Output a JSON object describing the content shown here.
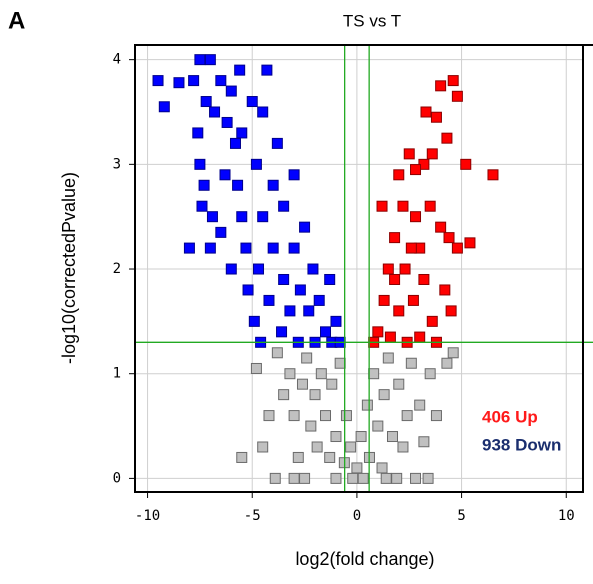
{
  "chart_data": {
    "type": "scatter",
    "panel_label": "A",
    "title": "TS vs T",
    "x_label": "log2(fold change)",
    "y_label": "-log10(correctedPvalue)",
    "xlim": [
      -10.6,
      10.8
    ],
    "ylim": [
      -0.13,
      4.14
    ],
    "xticks": [
      -10,
      -5,
      0,
      5,
      10
    ],
    "yticks": [
      0,
      1,
      2,
      3,
      4
    ],
    "grid": true,
    "vlines": [
      -0.585,
      0.585
    ],
    "hline": 1.3,
    "threshold_color": "#22aa22",
    "series": [
      {
        "color": "#c0c0c0",
        "x": [
          -4.8,
          -4.5,
          -3.8,
          -3.5,
          -3.2,
          -3.0,
          -2.8,
          -2.6,
          -2.4,
          -2.2,
          -2.0,
          -1.9,
          -1.7,
          -1.5,
          -1.3,
          -1.2,
          -1.0,
          -0.8,
          -0.6,
          -0.5,
          -0.3,
          -0.2,
          0,
          0.2,
          0.3,
          0.5,
          0.6,
          0.8,
          1.0,
          1.2,
          1.3,
          1.5,
          1.7,
          1.9,
          2.0,
          2.2,
          2.4,
          2.6,
          2.8,
          3.0,
          3.2,
          3.5,
          3.8,
          4.3,
          4.6,
          3.4,
          -3.0,
          -3.9,
          -2.5,
          -1.0,
          1.4,
          -5.5,
          -4.2
        ],
        "values": [
          1.05,
          0.3,
          1.2,
          0.8,
          1.0,
          0.6,
          0.2,
          0.9,
          1.15,
          0.5,
          0.8,
          0.3,
          1.0,
          0.6,
          0.2,
          0.9,
          0.4,
          1.1,
          0.15,
          0.6,
          0.3,
          0.0,
          0.1,
          0.4,
          0.0,
          0.7,
          0.2,
          1.0,
          0.5,
          0.1,
          0.8,
          1.15,
          0.4,
          0.0,
          0.9,
          0.3,
          0.6,
          1.1,
          0.0,
          0.7,
          0.35,
          1.0,
          0.6,
          1.1,
          1.2,
          0.0,
          0.0,
          0.0,
          0.0,
          0.0,
          0.0,
          0.2,
          0.6
        ]
      },
      {
        "color": "#0000ff",
        "x": [
          -9.5,
          -9.2,
          -8.5,
          -7.5,
          -7.0,
          -7.8,
          -7.2,
          -7.6,
          -6.8,
          -6.5,
          -6.2,
          -6.0,
          -5.8,
          -7.5,
          -7.3,
          -6.9,
          -7.0,
          -6.5,
          -6.0,
          -5.5,
          -5.7,
          -5.5,
          -5.0,
          -4.8,
          -4.5,
          -4.5,
          -4.7,
          -5.2,
          -4.9,
          -4.6,
          -4.2,
          -4.0,
          -4.0,
          -3.8,
          -3.5,
          -3.5,
          -3.6,
          -3.2,
          -3.0,
          -3.0,
          -2.8,
          -2.7,
          -2.5,
          -2.3,
          -2.1,
          -2.0,
          -1.8,
          -1.5,
          -1.3,
          -1.2,
          -1.0,
          -0.8,
          -5.3,
          -6.3,
          -8.0,
          -7.4,
          -4.3,
          -5.6
        ],
        "values": [
          3.8,
          3.55,
          3.78,
          4.0,
          4.0,
          3.8,
          3.6,
          3.3,
          3.5,
          3.8,
          3.4,
          3.7,
          3.2,
          3.0,
          2.8,
          2.5,
          2.2,
          2.35,
          2.0,
          2.5,
          2.8,
          3.3,
          3.6,
          3.0,
          3.5,
          2.5,
          2.0,
          1.8,
          1.5,
          1.3,
          1.7,
          2.2,
          2.8,
          3.2,
          2.6,
          1.9,
          1.4,
          1.6,
          2.2,
          2.9,
          1.3,
          1.8,
          2.4,
          1.6,
          2.0,
          1.3,
          1.7,
          1.4,
          1.9,
          1.3,
          1.5,
          1.3,
          2.2,
          2.9,
          2.2,
          2.6,
          3.9,
          3.9
        ]
      },
      {
        "color": "#ff0000",
        "x": [
          4.6,
          4.0,
          4.8,
          3.8,
          4.3,
          3.6,
          6.5,
          5.2,
          3.2,
          2.8,
          2.5,
          2.0,
          2.2,
          2.8,
          3.5,
          4.0,
          4.4,
          5.4,
          4.8,
          3.0,
          1.8,
          1.5,
          2.3,
          3.2,
          1.3,
          2.0,
          2.7,
          3.6,
          4.2,
          1.0,
          1.6,
          2.4,
          3.0,
          0.8,
          1.2,
          3.3,
          3.8,
          4.5,
          2.6,
          1.8
        ],
        "values": [
          3.8,
          3.75,
          3.65,
          3.45,
          3.25,
          3.1,
          2.9,
          3.0,
          3.0,
          2.95,
          3.1,
          2.9,
          2.6,
          2.5,
          2.6,
          2.4,
          2.3,
          2.25,
          2.2,
          2.2,
          2.3,
          2.0,
          2.0,
          1.9,
          1.7,
          1.6,
          1.7,
          1.5,
          1.8,
          1.4,
          1.35,
          1.3,
          1.35,
          1.3,
          2.6,
          3.5,
          1.3,
          1.6,
          2.2,
          1.9
        ]
      }
    ],
    "annotations": [
      {
        "text": "406 Up",
        "color": "#ff1a1a"
      },
      {
        "text": "938 Down",
        "color": "#1a2e6e"
      }
    ]
  }
}
